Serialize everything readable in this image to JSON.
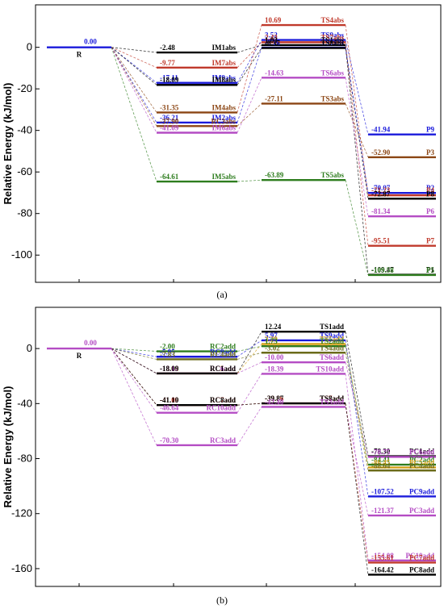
{
  "chart_data": [
    {
      "type": "energy_level_diagram",
      "panel_label": "(a)",
      "ylabel": "Relative Energy (kJ/mol)",
      "ylim": [
        -110,
        15
      ],
      "yticks": [
        0,
        -20,
        -40,
        -60,
        -80,
        -100
      ],
      "levels": [
        {
          "id": "R",
          "stage": 0,
          "energy": 0.0,
          "label": "R",
          "value_text": "0.00",
          "color": "#1a1adb"
        },
        {
          "id": "IM1abs",
          "stage": 1,
          "energy": -2.48,
          "label": "IM1abs",
          "value_text": "-2.48",
          "color": "#000000"
        },
        {
          "id": "IM7abs",
          "stage": 1,
          "energy": -9.77,
          "label": "IM7abs",
          "value_text": "-9.77",
          "color": "#c0392b"
        },
        {
          "id": "IM9abs",
          "stage": 1,
          "energy": -17.11,
          "label": "IM9abs",
          "value_text": "-17.11",
          "color": "#1a1adb"
        },
        {
          "id": "IM8abs",
          "stage": 1,
          "energy": -18.09,
          "label": "IM8abs",
          "value_text": "-18.09",
          "color": "#000000"
        },
        {
          "id": "IM4abs",
          "stage": 1,
          "energy": -31.35,
          "label": "IM4abs",
          "value_text": "-31.35",
          "color": "#8b4513"
        },
        {
          "id": "IM2abs",
          "stage": 1,
          "energy": -36.21,
          "label": "IM2abs",
          "value_text": "-36.21",
          "color": "#1a1adb"
        },
        {
          "id": "RC3abs",
          "stage": 1,
          "energy": -37.9,
          "label": "RC3abs",
          "value_text": "-37.90",
          "color": "#8b4513"
        },
        {
          "id": "IM6abs",
          "stage": 1,
          "energy": -41.09,
          "label": "IM6abs",
          "value_text": "-41.09",
          "color": "#b44cc4"
        },
        {
          "id": "IM5abs",
          "stage": 1,
          "energy": -64.61,
          "label": "IM5abs",
          "value_text": "-64.61",
          "color": "#2e7d1e"
        },
        {
          "id": "TS4abs",
          "stage": 2,
          "energy": 10.69,
          "label": "TS4abs",
          "value_text": "10.69",
          "color": "#c0392b"
        },
        {
          "id": "TS9abs",
          "stage": 2,
          "energy": 3.52,
          "label": "TS9abs",
          "value_text": "3.52",
          "color": "#1a1adb"
        },
        {
          "id": "TS7abs",
          "stage": 2,
          "energy": 2.43,
          "label": "TS7abs",
          "value_text": "2.43",
          "color": "#c0392b"
        },
        {
          "id": "TS1abs",
          "stage": 2,
          "energy": 1.03,
          "label": "TS1abs",
          "value_text": "1.03",
          "color": "#000000"
        },
        {
          "id": "TS2abs",
          "stage": 2,
          "energy": -0.16,
          "label": "TS2abs",
          "value_text": "-0.16",
          "color": "#1a1adb"
        },
        {
          "id": "TS8abs",
          "stage": 2,
          "energy": -0.37,
          "label": "TS8abs",
          "value_text": "-0.37",
          "color": "#000000"
        },
        {
          "id": "TS6abs",
          "stage": 2,
          "energy": -14.63,
          "label": "TS6abs",
          "value_text": "-14.63",
          "color": "#b44cc4"
        },
        {
          "id": "TS3abs",
          "stage": 2,
          "energy": -27.11,
          "label": "TS3abs",
          "value_text": "-27.11",
          "color": "#8b4513"
        },
        {
          "id": "TS5abs",
          "stage": 2,
          "energy": -63.89,
          "label": "TS5abs",
          "value_text": "-63.89",
          "color": "#2e7d1e"
        },
        {
          "id": "P9",
          "stage": 3,
          "energy": -41.94,
          "label": "P9",
          "value_text": "-41.94",
          "color": "#1a1adb"
        },
        {
          "id": "P3",
          "stage": 3,
          "energy": -52.9,
          "label": "P3",
          "value_text": "-52.90",
          "color": "#8b4513"
        },
        {
          "id": "P2",
          "stage": 3,
          "energy": -70.07,
          "label": "P2",
          "value_text": "-70.07",
          "color": "#1a1adb"
        },
        {
          "id": "P4",
          "stage": 3,
          "energy": -71.23,
          "label": "P4",
          "value_text": "-71.23",
          "color": "#c0392b"
        },
        {
          "id": "P8",
          "stage": 3,
          "energy": -72.87,
          "label": "P8",
          "value_text": "-72.87",
          "color": "#000000"
        },
        {
          "id": "P6",
          "stage": 3,
          "energy": -81.34,
          "label": "P6",
          "value_text": "-81.34",
          "color": "#b44cc4"
        },
        {
          "id": "P7",
          "stage": 3,
          "energy": -95.51,
          "label": "P7",
          "value_text": "-95.51",
          "color": "#c0392b"
        },
        {
          "id": "P1",
          "stage": 3,
          "energy": -109.47,
          "label": "P1",
          "value_text": "-109.47",
          "color": "#000000"
        },
        {
          "id": "P5",
          "stage": 3,
          "energy": -109.58,
          "label": "P5",
          "value_text": "-109.58",
          "color": "#2e7d1e"
        }
      ],
      "connections": [
        [
          "R",
          "IM1abs"
        ],
        [
          "R",
          "IM7abs"
        ],
        [
          "R",
          "IM9abs"
        ],
        [
          "R",
          "IM8abs"
        ],
        [
          "R",
          "IM4abs"
        ],
        [
          "R",
          "IM2abs"
        ],
        [
          "R",
          "RC3abs"
        ],
        [
          "R",
          "IM6abs"
        ],
        [
          "R",
          "IM5abs"
        ],
        [
          "IM1abs",
          "TS1abs"
        ],
        [
          "IM7abs",
          "TS7abs"
        ],
        [
          "IM9abs",
          "TS9abs"
        ],
        [
          "IM8abs",
          "TS8abs"
        ],
        [
          "IM4abs",
          "TS4abs"
        ],
        [
          "IM2abs",
          "TS2abs"
        ],
        [
          "RC3abs",
          "TS3abs"
        ],
        [
          "IM6abs",
          "TS6abs"
        ],
        [
          "IM5abs",
          "TS5abs"
        ],
        [
          "TS1abs",
          "P1"
        ],
        [
          "TS7abs",
          "P7"
        ],
        [
          "TS9abs",
          "P9"
        ],
        [
          "TS8abs",
          "P8"
        ],
        [
          "TS4abs",
          "P4"
        ],
        [
          "TS2abs",
          "P2"
        ],
        [
          "TS3abs",
          "P3"
        ],
        [
          "TS6abs",
          "P6"
        ],
        [
          "TS5abs",
          "P5"
        ]
      ]
    },
    {
      "type": "energy_level_diagram",
      "panel_label": "(b)",
      "ylabel": "Relative Energy (kJ/mol)",
      "ylim": [
        -170,
        20
      ],
      "yticks": [
        0,
        -40,
        -80,
        -120,
        -160
      ],
      "levels": [
        {
          "id": "R",
          "stage": 0,
          "energy": 0.0,
          "label": "R",
          "value_text": "0.00",
          "color": "#b44cc4"
        },
        {
          "id": "RC2add",
          "stage": 1,
          "energy": -2.0,
          "label": "RC2add",
          "value_text": "-2.00",
          "color": "#2e7d1e"
        },
        {
          "id": "RC9add",
          "stage": 1,
          "energy": -5.95,
          "label": "RC9add",
          "value_text": "-5.95",
          "color": "#1a1adb"
        },
        {
          "id": "RC4add",
          "stage": 1,
          "energy": -7.83,
          "label": "RC4add",
          "value_text": "-7.83",
          "color": "#6b6b1a"
        },
        {
          "id": "RC5add",
          "stage": 1,
          "energy": -18.08,
          "label": "RC5add",
          "value_text": "-18.08",
          "color": "#d4a017"
        },
        {
          "id": "RC6add",
          "stage": 1,
          "energy": -18.1,
          "label": "RC6add",
          "value_text": "-18.10",
          "color": "#b44cc4"
        },
        {
          "id": "RC1add",
          "stage": 1,
          "energy": -18.09,
          "label": "RC1add",
          "value_text": "-18.09",
          "color": "#000000"
        },
        {
          "id": "RC7add",
          "stage": 1,
          "energy": -41.09,
          "label": "RC7add",
          "value_text": "-41.09",
          "color": "#c0392b"
        },
        {
          "id": "RC8add",
          "stage": 1,
          "energy": -41.1,
          "label": "RC8add",
          "value_text": "-41.10",
          "color": "#000000"
        },
        {
          "id": "RC10add",
          "stage": 1,
          "energy": -46.64,
          "label": "RC10add",
          "value_text": "-46.64",
          "color": "#b44cc4"
        },
        {
          "id": "RC3add",
          "stage": 1,
          "energy": -70.3,
          "label": "RC3add",
          "value_text": "-70.30",
          "color": "#b44cc4"
        },
        {
          "id": "TS1add",
          "stage": 2,
          "energy": 12.24,
          "label": "TS1add",
          "value_text": "12.24",
          "color": "#000000"
        },
        {
          "id": "TS9add",
          "stage": 2,
          "energy": 5.97,
          "label": "TS9add",
          "value_text": "5.97",
          "color": "#1a1adb"
        },
        {
          "id": "TS5add",
          "stage": 2,
          "energy": 3.29,
          "label": "TS5add",
          "value_text": "3.29",
          "color": "#d4a017"
        },
        {
          "id": "TS2add",
          "stage": 2,
          "energy": 1.73,
          "label": "TS2add",
          "value_text": "1.73",
          "color": "#2e7d1e"
        },
        {
          "id": "TS4add",
          "stage": 2,
          "energy": -3.02,
          "label": "TS4add",
          "value_text": "-3.02",
          "color": "#6b6b1a"
        },
        {
          "id": "TS6add",
          "stage": 2,
          "energy": -10.0,
          "label": "TS6add",
          "value_text": "-10.00",
          "color": "#b44cc4"
        },
        {
          "id": "TS10add",
          "stage": 2,
          "energy": -18.39,
          "label": "TS10add",
          "value_text": "-18.39",
          "color": "#b44cc4"
        },
        {
          "id": "TS7add",
          "stage": 2,
          "energy": -39.86,
          "label": "TS7add",
          "value_text": "-39.86",
          "color": "#c0392b"
        },
        {
          "id": "TS8add",
          "stage": 2,
          "energy": -39.87,
          "label": "TS8add",
          "value_text": "-39.87",
          "color": "#000000"
        },
        {
          "id": "TS3add",
          "stage": 2,
          "energy": -42.4,
          "label": "TS3add",
          "value_text": "-42.40",
          "color": "#b44cc4"
        },
        {
          "id": "PC1add",
          "stage": 3,
          "energy": -78.3,
          "label": "PC1add",
          "value_text": "-78.30",
          "color": "#000000"
        },
        {
          "id": "PC6add",
          "stage": 3,
          "energy": -78.75,
          "label": "PC6add",
          "value_text": "-78.75",
          "color": "#b44cc4"
        },
        {
          "id": "PC2add",
          "stage": 3,
          "energy": -84.41,
          "label": "PC2add",
          "value_text": "-84.41",
          "color": "#2e7d1e"
        },
        {
          "id": "PC5add",
          "stage": 3,
          "energy": -86.45,
          "label": "PC5add",
          "value_text": "-86.45",
          "color": "#d4a017"
        },
        {
          "id": "PC4add",
          "stage": 3,
          "energy": -88.64,
          "label": "PC4add",
          "value_text": "-88.64",
          "color": "#6b6b1a"
        },
        {
          "id": "PC9add",
          "stage": 3,
          "energy": -107.52,
          "label": "PC9add",
          "value_text": "-107.52",
          "color": "#1a1adb"
        },
        {
          "id": "PC3add",
          "stage": 3,
          "energy": -121.37,
          "label": "PC3add",
          "value_text": "-121.37",
          "color": "#b44cc4"
        },
        {
          "id": "PC10add",
          "stage": 3,
          "energy": -154.08,
          "label": "PC10add",
          "value_text": "-154.08",
          "color": "#b44cc4"
        },
        {
          "id": "PC7add",
          "stage": 3,
          "energy": -155.61,
          "label": "PC7add",
          "value_text": "-155.61",
          "color": "#c0392b"
        },
        {
          "id": "PC8add",
          "stage": 3,
          "energy": -164.42,
          "label": "PC8add",
          "value_text": "-164.42",
          "color": "#000000"
        }
      ],
      "connections": [
        [
          "R",
          "RC2add"
        ],
        [
          "R",
          "RC9add"
        ],
        [
          "R",
          "RC4add"
        ],
        [
          "R",
          "RC5add"
        ],
        [
          "R",
          "RC6add"
        ],
        [
          "R",
          "RC1add"
        ],
        [
          "R",
          "RC7add"
        ],
        [
          "R",
          "RC8add"
        ],
        [
          "R",
          "RC10add"
        ],
        [
          "R",
          "RC3add"
        ],
        [
          "RC1add",
          "TS1add"
        ],
        [
          "RC9add",
          "TS9add"
        ],
        [
          "RC5add",
          "TS5add"
        ],
        [
          "RC2add",
          "TS2add"
        ],
        [
          "RC4add",
          "TS4add"
        ],
        [
          "RC6add",
          "TS6add"
        ],
        [
          "RC10add",
          "TS10add"
        ],
        [
          "RC7add",
          "TS7add"
        ],
        [
          "RC8add",
          "TS8add"
        ],
        [
          "RC3add",
          "TS3add"
        ],
        [
          "TS1add",
          "PC1add"
        ],
        [
          "TS6add",
          "PC6add"
        ],
        [
          "TS2add",
          "PC2add"
        ],
        [
          "TS5add",
          "PC5add"
        ],
        [
          "TS4add",
          "PC4add"
        ],
        [
          "TS9add",
          "PC9add"
        ],
        [
          "TS3add",
          "PC3add"
        ],
        [
          "TS10add",
          "PC10add"
        ],
        [
          "TS7add",
          "PC7add"
        ],
        [
          "TS8add",
          "PC8add"
        ]
      ]
    }
  ]
}
